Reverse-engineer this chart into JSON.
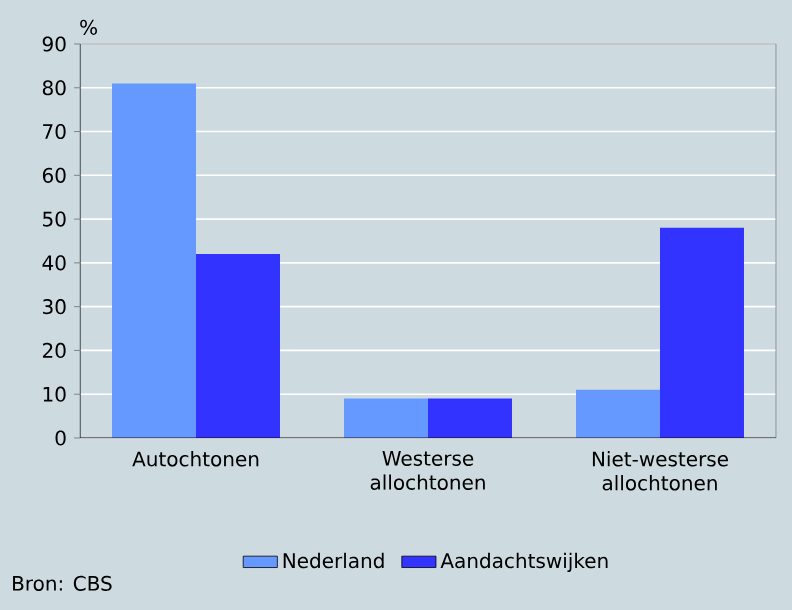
{
  "chart_data": {
    "type": "bar",
    "ylabel": "%",
    "categories": [
      "Autochtonen",
      "Westerse allochtonen",
      "Niet-westerse allochtonen"
    ],
    "series": [
      {
        "name": "Nederland",
        "color": "#6699ff",
        "values": [
          81,
          9,
          11
        ]
      },
      {
        "name": "Aandachtswijken",
        "color": "#3333ff",
        "values": [
          42,
          9,
          48
        ]
      }
    ],
    "ylim": [
      0,
      90
    ],
    "yticks": [
      0,
      10,
      20,
      30,
      40,
      50,
      60,
      70,
      80,
      90
    ],
    "grid": "y",
    "legend": "bottom",
    "annotations": [
      "Bron: CBS"
    ]
  }
}
